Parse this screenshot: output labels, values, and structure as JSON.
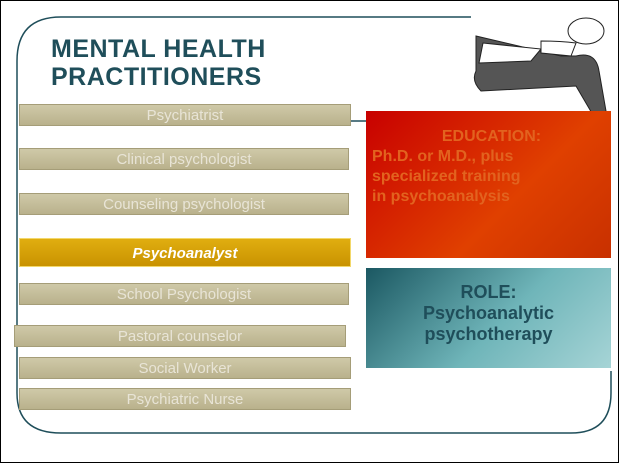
{
  "header": {
    "title": [
      "MENTAL HEALTH",
      "PRACTITIONERS"
    ]
  },
  "practitioners": [
    "Psychiatrist",
    "Clinical psychologist",
    "Counseling psychologist",
    "Psychoanalyst",
    "School Psychologist",
    "Pastoral counselor",
    "Social Worker",
    "Psychiatric Nurse"
  ],
  "education": {
    "heading": "EDUCATION:",
    "lines": [
      "Ph.D. or M.D., plus",
      "specialized training",
      "in psychoanalysis"
    ]
  },
  "role": {
    "heading": "ROLE:",
    "lines": [
      "Psychoanalytic",
      "psychotherapy"
    ]
  }
}
